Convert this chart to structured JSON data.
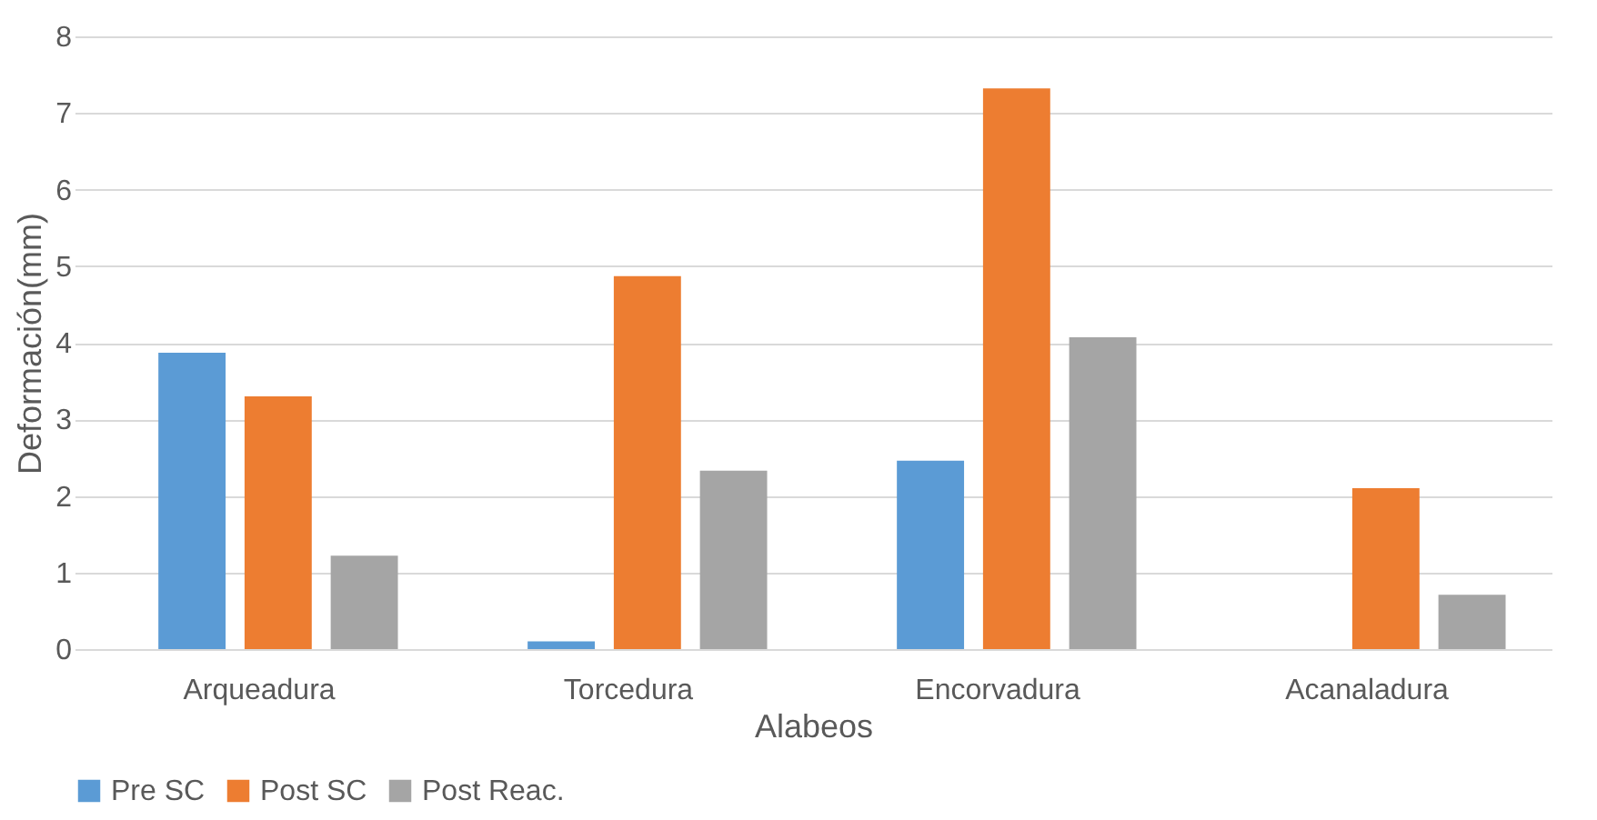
{
  "chart_data": {
    "type": "bar",
    "xlabel": "Alabeos",
    "ylabel": "Deformación(mm)",
    "categories": [
      "Arqueadura",
      "Torcedura",
      "Encorvadura",
      "Acanaladura"
    ],
    "series": [
      {
        "name": "Pre SC",
        "color": "#5b9bd5",
        "values": [
          3.87,
          0.1,
          2.46,
          0
        ]
      },
      {
        "name": "Post SC",
        "color": "#ed7d31",
        "values": [
          3.3,
          4.87,
          7.32,
          2.1
        ]
      },
      {
        "name": "Post Reac.",
        "color": "#a5a5a5",
        "values": [
          1.22,
          2.33,
          4.07,
          0.71
        ]
      }
    ],
    "ylim": [
      0,
      8
    ],
    "yticks": [
      0,
      1,
      2,
      3,
      4,
      5,
      6,
      7,
      8
    ],
    "grid": "y",
    "legend": "bottom"
  }
}
